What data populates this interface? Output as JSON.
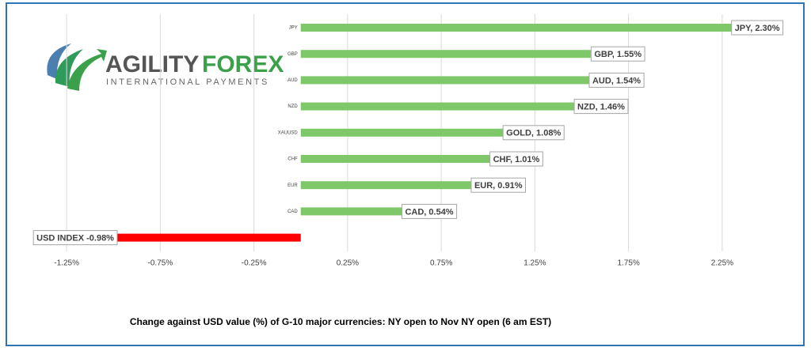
{
  "logo": {
    "name_first": "AGILITY",
    "name_second": "FOREX",
    "tagline": "INTERNATIONAL PAYMENTS"
  },
  "chart_data": {
    "type": "hbar",
    "caption": "Change against  USD value (%)  of  G-10 major currencies: NY open to Nov NY open  (6 am EST)",
    "categories": [
      "JPY",
      "GBP",
      "AUD",
      "NZD",
      "XAUUSD",
      "CHF",
      "EUR",
      "CAD",
      null
    ],
    "values": [
      2.3,
      1.55,
      1.54,
      1.46,
      1.08,
      1.01,
      0.91,
      0.54,
      -0.98
    ],
    "value_labels": [
      "JPY, 2.30%",
      "GBP, 1.55%",
      "AUD, 1.54%",
      "NZD, 1.46%",
      "GOLD, 1.08%",
      "CHF, 1.01%",
      "EUR, 0.91%",
      "CAD, 0.54%",
      "USD INDEX -0.98%"
    ],
    "colors": [
      "#7ec86a",
      "#7ec86a",
      "#7ec86a",
      "#7ec86a",
      "#7ec86a",
      "#7ec86a",
      "#7ec86a",
      "#7ec86a",
      "#ff0000"
    ],
    "xlim": [
      -1.5,
      2.5
    ],
    "xticks": [
      {
        "value": -1.25,
        "label": "-1.25%"
      },
      {
        "value": -0.75,
        "label": "-0.75%"
      },
      {
        "value": -0.25,
        "label": "-0.25%"
      },
      {
        "value": 0.25,
        "label": "0.25%"
      },
      {
        "value": 0.75,
        "label": "0.75%"
      },
      {
        "value": 1.25,
        "label": "1.25%"
      },
      {
        "value": 1.75,
        "label": "1.75%"
      },
      {
        "value": 2.25,
        "label": "2.25%"
      }
    ],
    "grid": true
  }
}
